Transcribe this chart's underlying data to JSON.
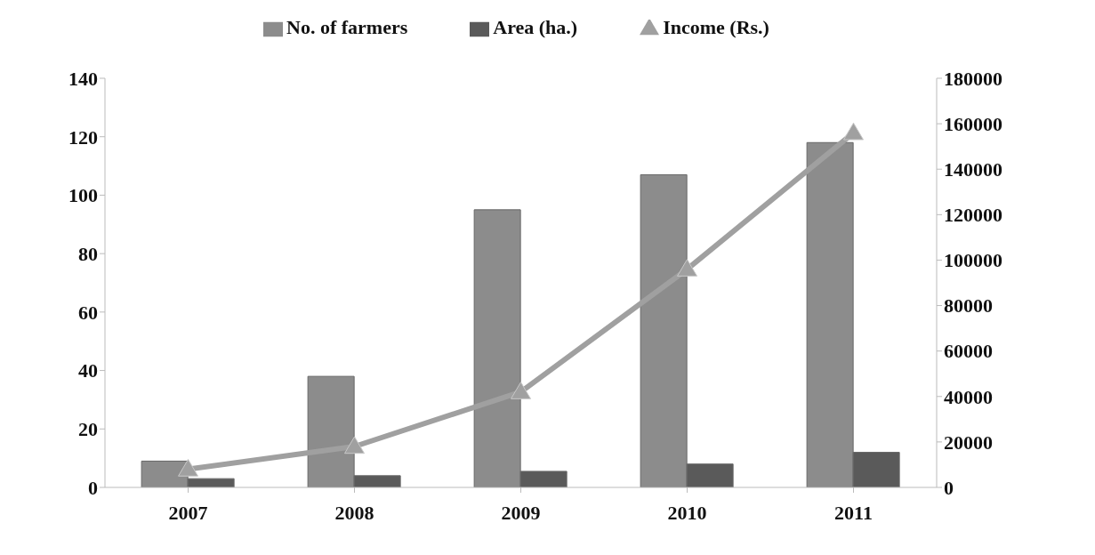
{
  "chart_data": {
    "type": "bar",
    "categories": [
      "2007",
      "2008",
      "2009",
      "2010",
      "2011"
    ],
    "series": [
      {
        "name": "No. of farmers",
        "color": "#8c8c8c",
        "values": [
          9,
          38,
          95,
          107,
          118
        ]
      },
      {
        "name": "Area (ha.)",
        "color": "#5a5a5a",
        "values": [
          3,
          4,
          5.5,
          8,
          12
        ]
      },
      {
        "name": "Income (Rs.)",
        "type": "line",
        "axis": "y2",
        "color": "#a0a0a0",
        "marker": "triangle",
        "values": [
          8000,
          18000,
          42000,
          96000,
          156000
        ]
      }
    ],
    "ylim": [
      0,
      140
    ],
    "yticks": [
      0,
      20,
      40,
      60,
      80,
      100,
      120,
      140
    ],
    "y2lim": [
      0,
      180000
    ],
    "y2ticks": [
      0,
      20000,
      40000,
      60000,
      80000,
      100000,
      120000,
      140000,
      160000,
      180000
    ],
    "grid": false,
    "legend": "top"
  }
}
